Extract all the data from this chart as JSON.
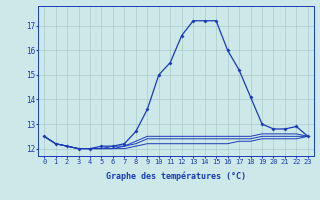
{
  "hours": [
    0,
    1,
    2,
    3,
    4,
    5,
    6,
    7,
    8,
    9,
    10,
    11,
    12,
    13,
    14,
    15,
    16,
    17,
    18,
    19,
    20,
    21,
    22,
    23
  ],
  "main_temps": [
    12.5,
    12.2,
    12.1,
    12.0,
    12.0,
    12.1,
    12.1,
    12.2,
    12.7,
    13.6,
    15.0,
    15.5,
    16.6,
    17.2,
    17.2,
    17.2,
    16.0,
    15.2,
    14.1,
    13.0,
    12.8,
    12.8,
    12.9,
    12.5
  ],
  "line2": [
    12.5,
    12.2,
    12.1,
    12.0,
    12.0,
    12.0,
    12.1,
    12.1,
    12.3,
    12.5,
    12.5,
    12.5,
    12.5,
    12.5,
    12.5,
    12.5,
    12.5,
    12.5,
    12.5,
    12.6,
    12.6,
    12.6,
    12.6,
    12.5
  ],
  "line3": [
    12.5,
    12.2,
    12.1,
    12.0,
    12.0,
    12.0,
    12.0,
    12.1,
    12.2,
    12.4,
    12.4,
    12.4,
    12.4,
    12.4,
    12.4,
    12.4,
    12.4,
    12.4,
    12.4,
    12.5,
    12.5,
    12.5,
    12.5,
    12.5
  ],
  "line4": [
    12.5,
    12.2,
    12.1,
    12.0,
    12.0,
    12.0,
    12.0,
    12.0,
    12.1,
    12.2,
    12.2,
    12.2,
    12.2,
    12.2,
    12.2,
    12.2,
    12.2,
    12.3,
    12.3,
    12.4,
    12.4,
    12.4,
    12.4,
    12.5
  ],
  "line_color": "#1a3ab8",
  "bg_color": "#cce8e8",
  "grid_color": "#aacccc",
  "xlabel": "Graphe des températures (°C)",
  "ylim": [
    11.7,
    17.8
  ],
  "yticks": [
    12,
    13,
    14,
    15,
    16,
    17
  ],
  "xticks": [
    0,
    1,
    2,
    3,
    4,
    5,
    6,
    7,
    8,
    9,
    10,
    11,
    12,
    13,
    14,
    15,
    16,
    17,
    18,
    19,
    20,
    21,
    22,
    23
  ]
}
